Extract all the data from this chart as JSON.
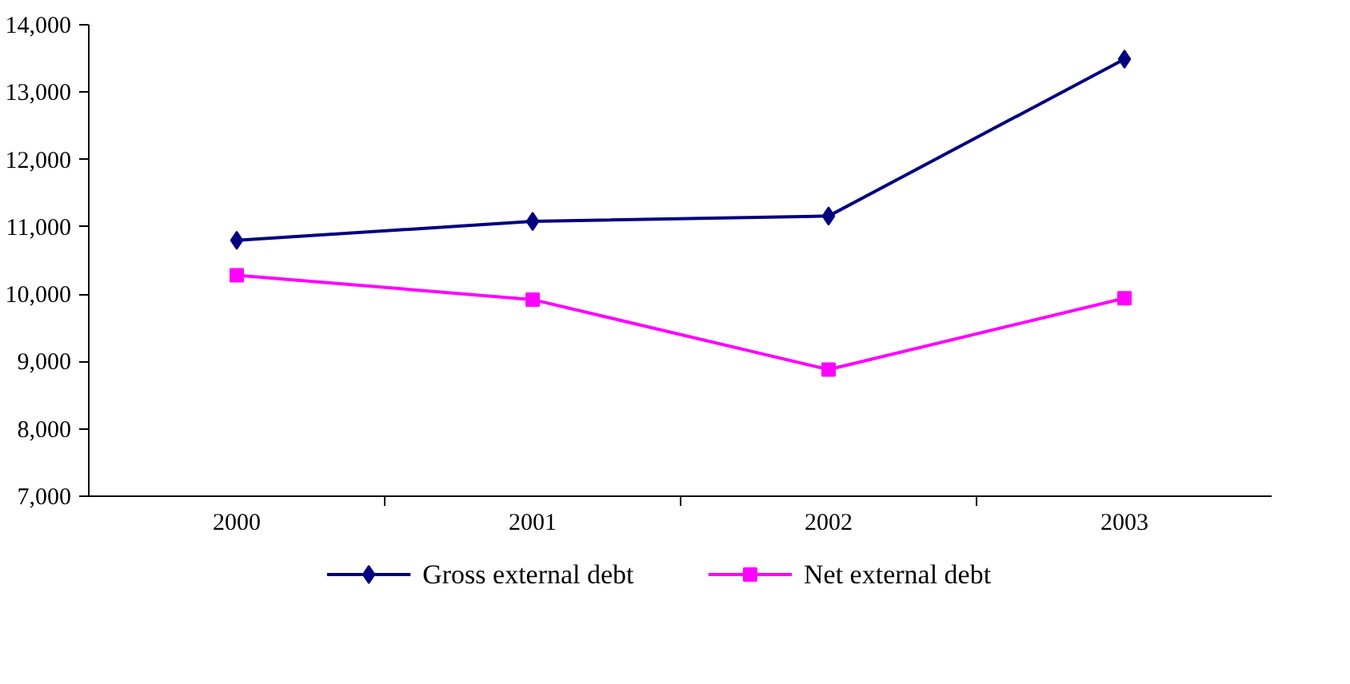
{
  "chart_data": {
    "type": "line",
    "categories": [
      "2000",
      "2001",
      "2002",
      "2003"
    ],
    "series": [
      {
        "name": "Gross external debt",
        "color": "#000080",
        "marker": "diamond",
        "values": [
          10800,
          11080,
          11160,
          13490
        ]
      },
      {
        "name": "Net external debt",
        "color": "#ff00ff",
        "marker": "square",
        "values": [
          10280,
          9920,
          8880,
          9940
        ]
      }
    ],
    "ylim": [
      7000,
      14000
    ],
    "yticks": [
      {
        "value": 7000,
        "label": "7,000"
      },
      {
        "value": 8000,
        "label": "8,000"
      },
      {
        "value": 9000,
        "label": "9,000"
      },
      {
        "value": 10000,
        "label": "10,000"
      },
      {
        "value": 11000,
        "label": "11,000"
      },
      {
        "value": 12000,
        "label": "12,000"
      },
      {
        "value": 13000,
        "label": "13,000"
      },
      {
        "value": 14000,
        "label": "14,000"
      }
    ],
    "grid": false,
    "legend": "bottom",
    "line_style": "solid"
  }
}
